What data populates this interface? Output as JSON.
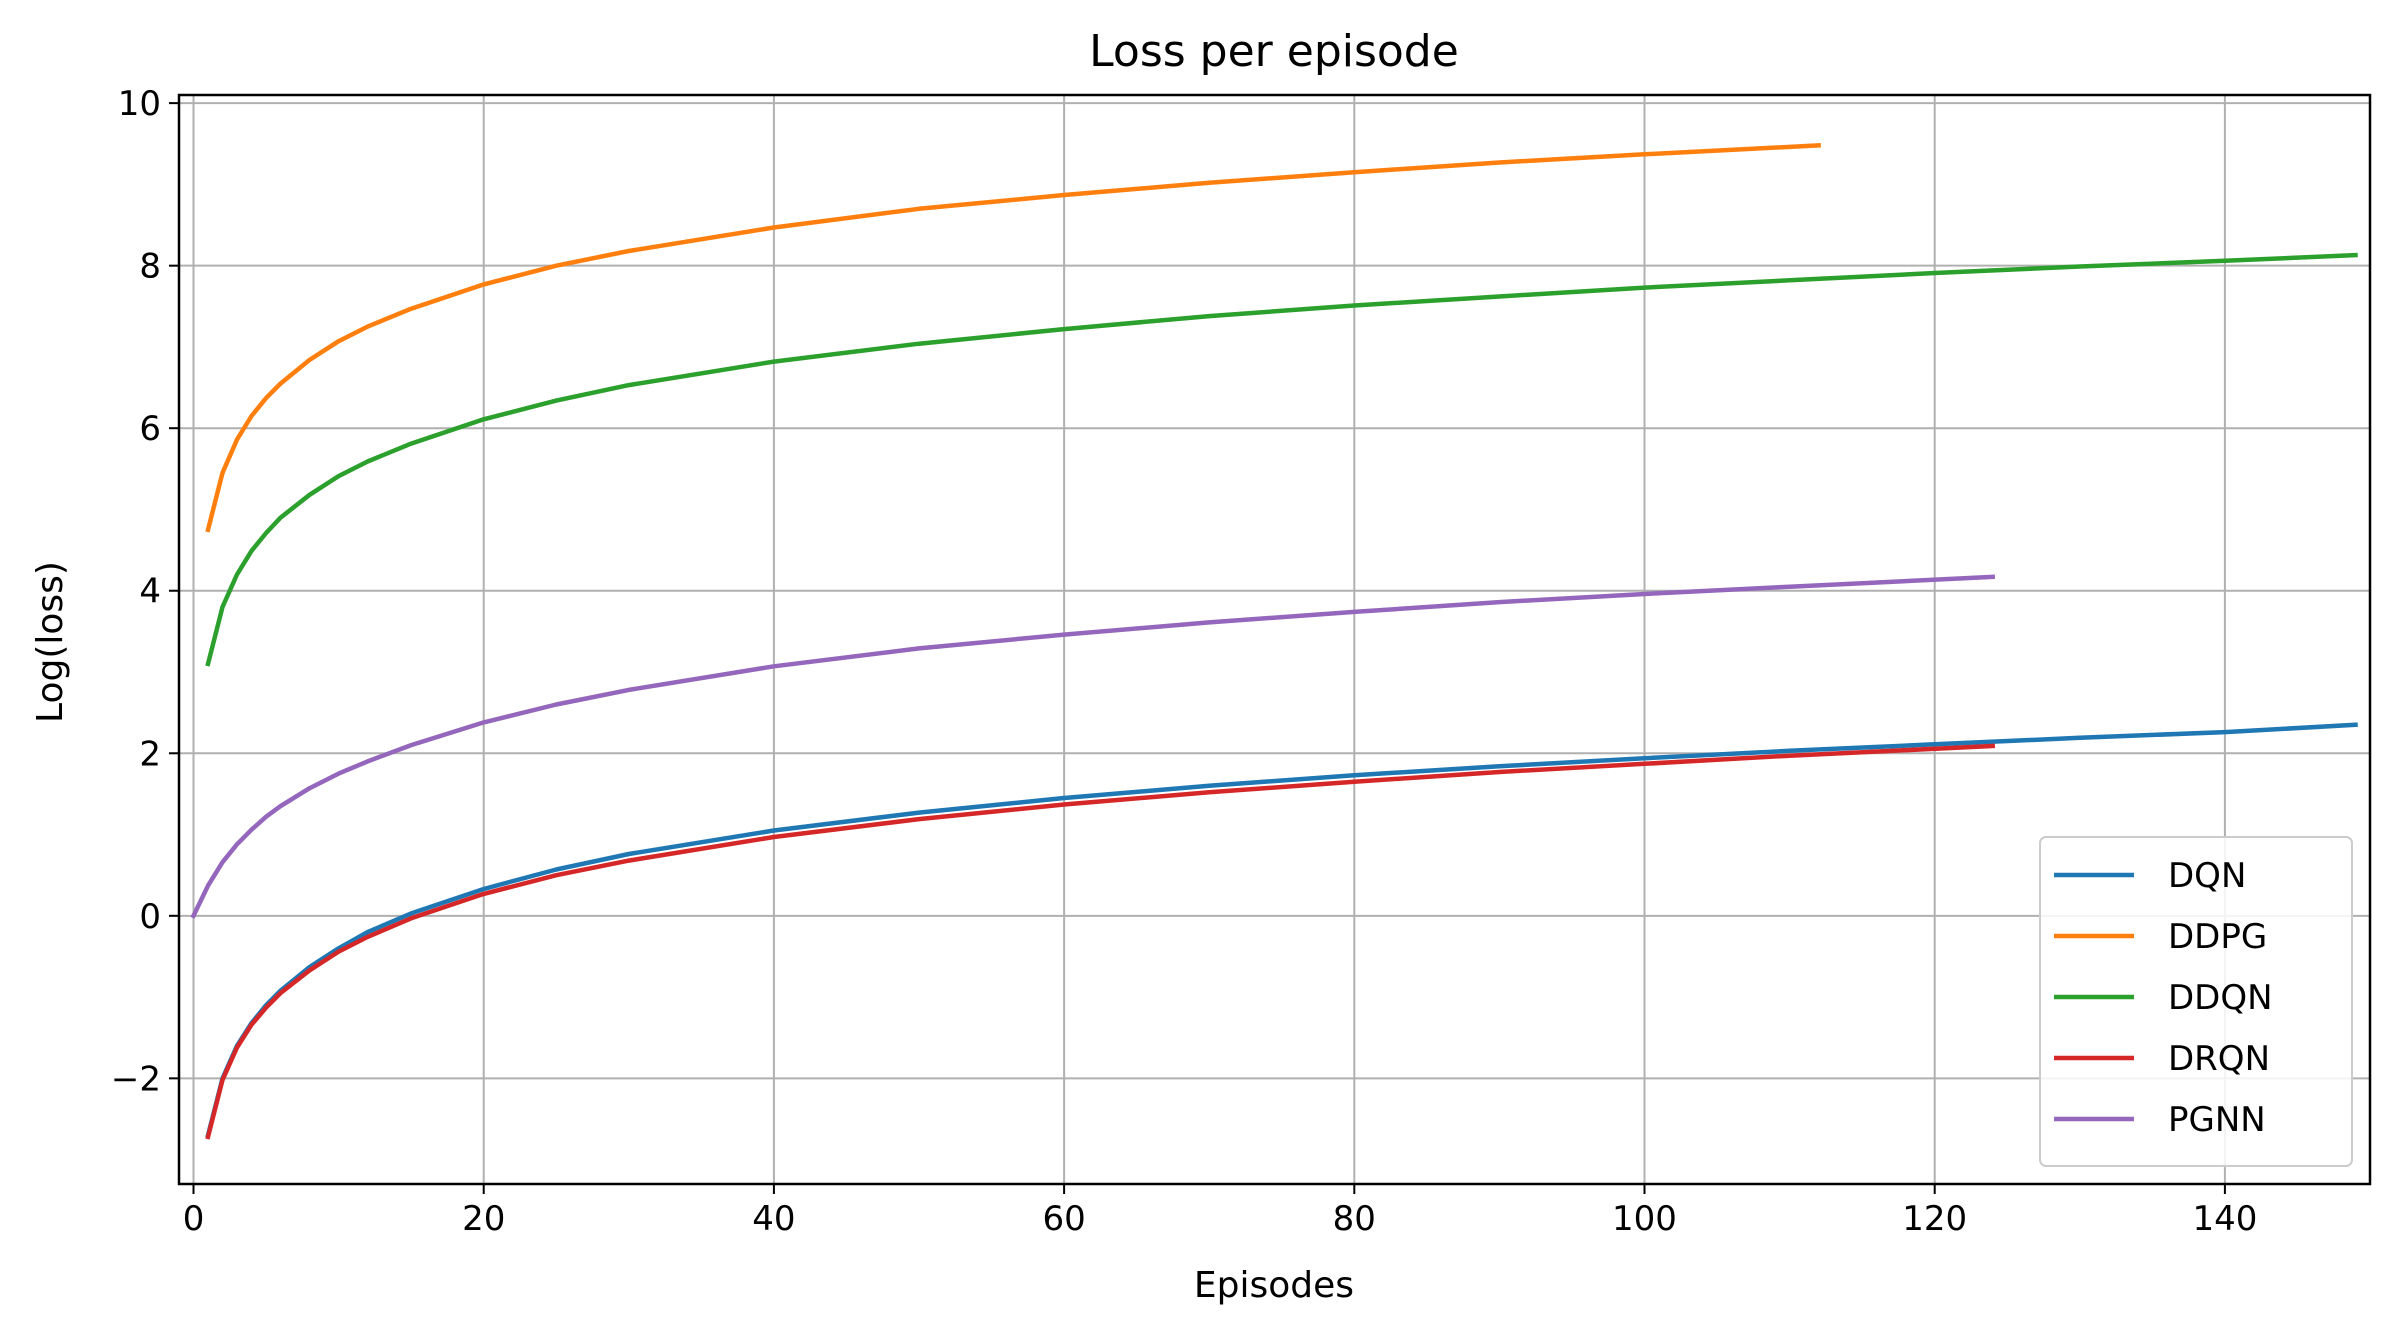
{
  "chart_data": {
    "type": "line",
    "title": "Loss per episode",
    "xlabel": "Episodes",
    "ylabel": "Log(loss)",
    "xlim": [
      -1,
      150
    ],
    "ylim": [
      -3.3,
      10.1
    ],
    "xticks": [
      0,
      20,
      40,
      60,
      80,
      100,
      120,
      140
    ],
    "yticks": [
      -2,
      0,
      2,
      4,
      6,
      8,
      10
    ],
    "ytick_labels": [
      "−2",
      "0",
      "2",
      "4",
      "6",
      "8",
      "10"
    ],
    "grid": true,
    "legend_position": "lower-right",
    "series": [
      {
        "name": "DQN",
        "color": "#1f77b4",
        "x": [
          1,
          2,
          3,
          4,
          5,
          6,
          8,
          10,
          12,
          15,
          20,
          25,
          30,
          40,
          50,
          60,
          70,
          80,
          90,
          100,
          110,
          120,
          130,
          140,
          149
        ],
        "y": [
          -2.7,
          -2.0,
          -1.6,
          -1.32,
          -1.1,
          -0.92,
          -0.63,
          -0.4,
          -0.2,
          0.03,
          0.33,
          0.57,
          0.76,
          1.05,
          1.27,
          1.45,
          1.6,
          1.73,
          1.84,
          1.94,
          2.03,
          2.11,
          2.19,
          2.26,
          2.35
        ]
      },
      {
        "name": "DDPG",
        "color": "#ff7f0e",
        "x": [
          1,
          2,
          3,
          4,
          5,
          6,
          8,
          10,
          12,
          15,
          20,
          25,
          30,
          40,
          50,
          60,
          70,
          80,
          90,
          100,
          112
        ],
        "y": [
          4.75,
          5.45,
          5.86,
          6.15,
          6.37,
          6.55,
          6.84,
          7.07,
          7.25,
          7.47,
          7.77,
          8.0,
          8.18,
          8.47,
          8.7,
          8.87,
          9.02,
          9.15,
          9.27,
          9.37,
          9.48
        ]
      },
      {
        "name": "DDQN",
        "color": "#2ca02c",
        "x": [
          1,
          2,
          3,
          4,
          5,
          6,
          8,
          10,
          12,
          15,
          20,
          25,
          30,
          40,
          50,
          60,
          70,
          80,
          90,
          100,
          110,
          120,
          130,
          140,
          149
        ],
        "y": [
          3.1,
          3.8,
          4.2,
          4.49,
          4.71,
          4.9,
          5.18,
          5.41,
          5.59,
          5.81,
          6.11,
          6.34,
          6.53,
          6.82,
          7.04,
          7.22,
          7.38,
          7.51,
          7.62,
          7.73,
          7.82,
          7.91,
          7.99,
          8.06,
          8.13
        ]
      },
      {
        "name": "DRQN",
        "color": "#d62728",
        "x": [
          1,
          2,
          3,
          4,
          5,
          6,
          8,
          10,
          12,
          15,
          20,
          25,
          30,
          40,
          50,
          60,
          70,
          80,
          90,
          100,
          110,
          124
        ],
        "y": [
          -2.72,
          -2.02,
          -1.62,
          -1.34,
          -1.13,
          -0.95,
          -0.67,
          -0.44,
          -0.26,
          -0.03,
          0.27,
          0.5,
          0.68,
          0.97,
          1.19,
          1.37,
          1.52,
          1.65,
          1.77,
          1.87,
          1.97,
          2.09
        ]
      },
      {
        "name": "PGNN",
        "color": "#9467bd",
        "x": [
          0,
          1,
          2,
          3,
          4,
          5,
          6,
          8,
          10,
          12,
          15,
          20,
          25,
          30,
          40,
          50,
          60,
          70,
          80,
          90,
          100,
          110,
          124
        ],
        "y": [
          0.0,
          0.37,
          0.66,
          0.88,
          1.06,
          1.22,
          1.35,
          1.57,
          1.75,
          1.9,
          2.1,
          2.38,
          2.6,
          2.78,
          3.07,
          3.29,
          3.46,
          3.61,
          3.74,
          3.86,
          3.96,
          4.05,
          4.17
        ]
      }
    ]
  }
}
